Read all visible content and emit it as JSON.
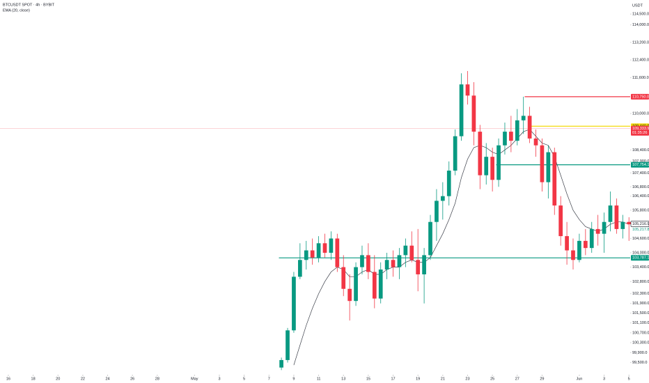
{
  "chart_data": {
    "type": "candlestick",
    "title": "BTCUSDT SPOT · 4h · BYBIT",
    "currency": "USDT",
    "log_scale": true,
    "ylim": [
      99100,
      115150
    ],
    "xlim": [
      -0.67,
      50.1
    ],
    "yticks": [
      {
        "value": 114500,
        "label": "114,500.0"
      },
      {
        "value": 114000,
        "label": "114,000.0"
      },
      {
        "value": 113200,
        "label": "113,200.0"
      },
      {
        "value": 112400,
        "label": "112,400.0"
      },
      {
        "value": 111600,
        "label": "111,600.0"
      },
      {
        "value": 110000,
        "label": "110,000.0"
      },
      {
        "value": 108400,
        "label": "108,400.0"
      },
      {
        "value": 107900,
        "label": "107,900.0"
      },
      {
        "value": 107400,
        "label": "107,400.0"
      },
      {
        "value": 106800,
        "label": "106,800.0"
      },
      {
        "value": 106400,
        "label": "106,400.0"
      },
      {
        "value": 105800,
        "label": "105,800.0"
      },
      {
        "value": 104600,
        "label": "104,600.0"
      },
      {
        "value": 104000,
        "label": "104,000.0"
      },
      {
        "value": 103400,
        "label": "103,400.0"
      },
      {
        "value": 102800,
        "label": "102,800.0"
      },
      {
        "value": 102300,
        "label": "102,300.0"
      },
      {
        "value": 101900,
        "label": "101,900.0"
      },
      {
        "value": 101500,
        "label": "101,500.0"
      },
      {
        "value": 101100,
        "label": "101,100.0"
      },
      {
        "value": 100700,
        "label": "100,700.0"
      },
      {
        "value": 100300,
        "label": "100,300.0"
      },
      {
        "value": 99900,
        "label": "99,900.0"
      },
      {
        "value": 99500,
        "label": "99,500.0"
      }
    ],
    "xticks": [
      {
        "value": 0,
        "label": "16"
      },
      {
        "value": 2,
        "label": "18"
      },
      {
        "value": 4,
        "label": "20"
      },
      {
        "value": 6,
        "label": "22"
      },
      {
        "value": 8,
        "label": "24"
      },
      {
        "value": 10,
        "label": "26"
      },
      {
        "value": 12,
        "label": "28"
      },
      {
        "value": 15,
        "label": "May"
      },
      {
        "value": 17,
        "label": "3"
      },
      {
        "value": 19,
        "label": "5"
      },
      {
        "value": 21,
        "label": "7"
      },
      {
        "value": 23,
        "label": "9"
      },
      {
        "value": 25,
        "label": "11"
      },
      {
        "value": 27,
        "label": "13"
      },
      {
        "value": 29,
        "label": "15"
      },
      {
        "value": 31,
        "label": "17"
      },
      {
        "value": 33,
        "label": "19"
      },
      {
        "value": 35,
        "label": "21"
      },
      {
        "value": 37,
        "label": "23"
      },
      {
        "value": 39,
        "label": "25"
      },
      {
        "value": 41,
        "label": "27"
      },
      {
        "value": 43,
        "label": "29"
      },
      {
        "value": 46,
        "label": "Jun"
      },
      {
        "value": 48,
        "label": "3"
      },
      {
        "value": 50,
        "label": "5"
      }
    ],
    "x": [
      22,
      22.5,
      23,
      23.5,
      24,
      24.5,
      25,
      25.5,
      26,
      26.5,
      27,
      27.5,
      28,
      28.5,
      29,
      29.5,
      30,
      30.5,
      31,
      31.5,
      32,
      32.5,
      33,
      33.5,
      34,
      34.5,
      35,
      35.5,
      36,
      36.5,
      37,
      37.5,
      38,
      38.5,
      39,
      39.5,
      40,
      40.5,
      41,
      41.5,
      42,
      42.5,
      43,
      43.5,
      44,
      44.5,
      45,
      45.5,
      46,
      46.5,
      47,
      47.5,
      48,
      48.5,
      49,
      49.5,
      50
    ],
    "open": [
      99300,
      99600,
      100800,
      103000,
      103700,
      104100,
      103800,
      104400,
      104000,
      104600,
      103400,
      102500,
      102000,
      103400,
      103900,
      103200,
      102100,
      103300,
      103700,
      103400,
      103900,
      104300,
      103700,
      103100,
      103900,
      105300,
      106200,
      106400,
      107500,
      109000,
      111300,
      110800,
      109200,
      107300,
      108100,
      107100,
      108600,
      109200,
      108800,
      109700,
      109900,
      108900,
      108600,
      107000,
      108300,
      106000,
      104700,
      104100,
      103700,
      104500,
      104200,
      105000,
      104800,
      105300,
      106000,
      105000,
      105300
    ],
    "high": [
      99700,
      100900,
      103200,
      104400,
      104500,
      104600,
      104700,
      104800,
      104900,
      104800,
      103900,
      103100,
      103600,
      104300,
      104400,
      103900,
      103600,
      104000,
      104100,
      104200,
      104600,
      104900,
      105000,
      104200,
      105600,
      106700,
      107000,
      107900,
      109300,
      111800,
      111900,
      111400,
      109500,
      108700,
      108500,
      108900,
      109600,
      109900,
      110200,
      110750,
      110300,
      109300,
      108900,
      108600,
      108500,
      106400,
      105300,
      104600,
      104800,
      105000,
      105300,
      105600,
      105700,
      106600,
      106300,
      105600,
      105500
    ],
    "low": [
      99200,
      99500,
      100700,
      102900,
      103300,
      103500,
      103600,
      103800,
      103700,
      103200,
      102200,
      101200,
      101800,
      103100,
      102900,
      101700,
      101900,
      102900,
      103000,
      102900,
      103400,
      103600,
      102400,
      101900,
      103700,
      104500,
      105400,
      106000,
      107300,
      108800,
      110400,
      108600,
      106700,
      106900,
      106600,
      106800,
      108200,
      108300,
      108600,
      109100,
      108700,
      108100,
      106600,
      106300,
      105600,
      104300,
      103500,
      103300,
      103600,
      103900,
      104000,
      104300,
      104000,
      104900,
      104800,
      104600,
      104500
    ],
    "close": [
      99600,
      100800,
      103000,
      103700,
      104100,
      103800,
      104400,
      104000,
      104600,
      103400,
      102500,
      102000,
      103400,
      103900,
      103200,
      102100,
      103300,
      103700,
      103400,
      103900,
      104300,
      103700,
      103100,
      103900,
      105300,
      106200,
      106400,
      107500,
      109000,
      111300,
      110800,
      109200,
      107300,
      108100,
      107100,
      108600,
      109200,
      108800,
      109700,
      109900,
      108900,
      108600,
      107000,
      108300,
      106000,
      104700,
      104100,
      103700,
      104500,
      104200,
      105000,
      104800,
      105300,
      106000,
      105000,
      105300,
      105200
    ],
    "up_color": "#089981",
    "down_color": "#f23645",
    "ema": {
      "name": "EMA (20, close)",
      "color": "#3a3e48",
      "values": [
        null,
        null,
        99400,
        100200,
        101000,
        101700,
        102300,
        102800,
        103200,
        103400,
        103300,
        103000,
        103000,
        103200,
        103300,
        103100,
        103100,
        103300,
        103400,
        103400,
        103600,
        103700,
        103600,
        103600,
        103800,
        104300,
        104800,
        105400,
        106100,
        107200,
        108000,
        108500,
        108600,
        108500,
        108300,
        108200,
        108400,
        108600,
        108900,
        109200,
        109300,
        109000,
        108700,
        108600,
        108100,
        107300,
        106500,
        105800,
        105400,
        105100,
        105000,
        104900,
        105000,
        105200,
        105300,
        105300,
        105200
      ]
    },
    "price_lines": [
      {
        "value": 110750,
        "label": "110,750.0",
        "color": "#f23645",
        "from": 41.6
      },
      {
        "value": 109440,
        "label": "109,440.0",
        "color": "#f5d90a",
        "from": 42.0
      },
      {
        "value": 107754.1,
        "label": "107,754.1",
        "color": "#089981",
        "from": 39.3
      },
      {
        "value": 103787.1,
        "label": "103,787.1",
        "color": "#089981",
        "from": 21.8
      }
    ],
    "current_price": {
      "value": 109333.9,
      "label": "109,333.9",
      "countdown": "01:35:26",
      "color": "#f23645"
    },
    "last_prices": [
      {
        "value": 105216.9,
        "label": "105,216.9",
        "color": "#131722"
      },
      {
        "value": 105217.8,
        "label": "105,217.8",
        "color": "#089981"
      }
    ]
  }
}
